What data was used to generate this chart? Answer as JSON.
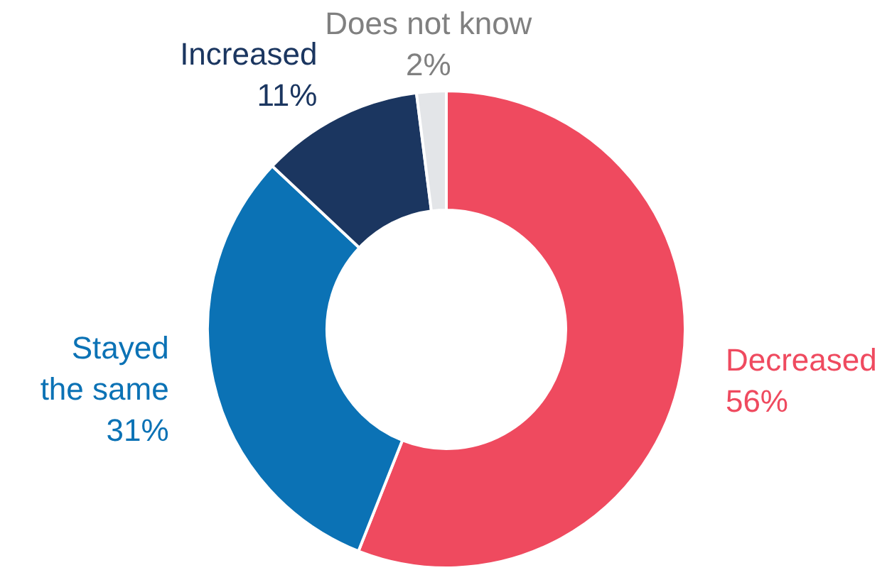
{
  "chart_data": {
    "type": "donut",
    "categories": [
      "Decreased",
      "Stayed the same",
      "Increased",
      "Does not know"
    ],
    "values": [
      56,
      31,
      11,
      2
    ],
    "colors": [
      "#ef4a5f",
      "#0b72b5",
      "#1b3660",
      "#e3e5e8"
    ],
    "value_labels": [
      "56%",
      "31%",
      "11%",
      "2%"
    ]
  }
}
